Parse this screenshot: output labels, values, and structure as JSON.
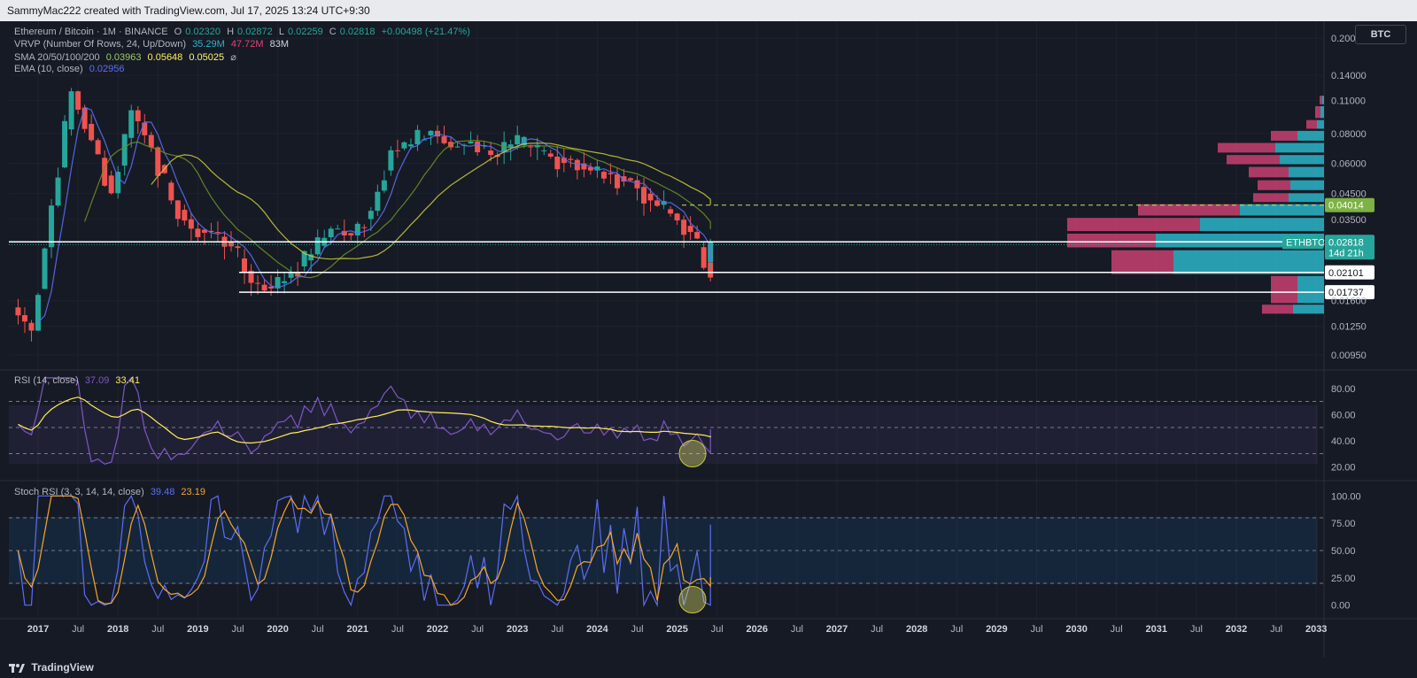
{
  "header": {
    "text": "SammyMac222 created with TradingView.com, Jul 17, 2025 13:24 UTC+9:30"
  },
  "footer": {
    "brand": "TradingView"
  },
  "currency_button": "BTC",
  "legend": {
    "symbol": "Ethereum / Bitcoin · 1M · BINANCE",
    "o_label": "O",
    "o": "0.02320",
    "h_label": "H",
    "h": "0.02872",
    "l_label": "L",
    "l": "0.02259",
    "c_label": "C",
    "c": "0.02818",
    "change": "+0.00498 (+21.47%)",
    "vrvp_label": "VRVP (Number Of Rows, 24, Up/Down)",
    "vrvp_up": "35.29M",
    "vrvp_down": "47.72M",
    "vrvp_total": "83M",
    "sma_label": "SMA 20/50/100/200",
    "sma_20": "0.03963",
    "sma_50": "0.05648",
    "sma_100": "0.05025",
    "ema_label": "EMA (10, close)",
    "ema": "0.02956",
    "rsi_label": "RSI (14, close)",
    "rsi": "37.09",
    "rsi_ma": "33.41",
    "stoch_label": "Stoch RSI (3, 3, 14, 14, close)",
    "stoch_k": "39.48",
    "stoch_d": "23.19"
  },
  "colors": {
    "up": "#26a69a",
    "down": "#ef5350",
    "sma20": "#ffee58",
    "sma50": "#f9f871",
    "ema": "#5b6ef5",
    "rsi": "#7e57c2",
    "stoch_k": "#5b6ef5",
    "stoch_d": "#f7a629",
    "vol_up": "#2bb5c8",
    "vol_down": "#e0457b"
  },
  "price_axis": {
    "ticks": [
      "0.20000",
      "0.14000",
      "0.11000",
      "0.08000",
      "0.06000",
      "0.04500",
      "0.03500",
      "0.02818",
      "0.02101",
      "0.01737",
      "0.01600",
      "0.01250",
      "0.00950"
    ]
  },
  "price_labels": {
    "level_dashed": "0.04014",
    "current": "0.02818",
    "countdown": "14d 21h",
    "ticker": "ETHBTC",
    "support1": "0.02101",
    "support2": "0.01737"
  },
  "rsi_axis": {
    "ticks": [
      "80.00",
      "60.00",
      "40.00",
      "20.00"
    ]
  },
  "stoch_axis": {
    "ticks": [
      "100.00",
      "75.00",
      "50.00",
      "25.00",
      "0.00"
    ]
  },
  "time_axis": {
    "ticks": [
      "2017",
      "Jul",
      "2018",
      "Jul",
      "2019",
      "Jul",
      "2020",
      "Jul",
      "2021",
      "Jul",
      "2022",
      "Jul",
      "2023",
      "Jul",
      "2024",
      "Jul",
      "2025",
      "Jul",
      "2026",
      "Jul",
      "2027",
      "Jul",
      "2028",
      "Jul",
      "2029",
      "Jul",
      "2030",
      "Jul",
      "2031",
      "Jul",
      "2032",
      "Jul",
      "2033"
    ]
  },
  "chart_data": {
    "type": "candlestick",
    "symbol": "ETHBTC",
    "interval": "1M",
    "y_scale": "log",
    "ylim": [
      0.0085,
      0.22
    ],
    "candles_quarterly_approx": [
      {
        "t": "2016-10",
        "o": 0.015,
        "c": 0.012
      },
      {
        "t": "2017-01",
        "o": 0.012,
        "c": 0.04
      },
      {
        "t": "2017-04",
        "o": 0.04,
        "c": 0.12
      },
      {
        "t": "2017-07",
        "o": 0.12,
        "c": 0.075
      },
      {
        "t": "2017-10",
        "o": 0.075,
        "c": 0.045
      },
      {
        "t": "2018-01",
        "o": 0.045,
        "c": 0.1
      },
      {
        "t": "2018-04",
        "o": 0.1,
        "c": 0.07
      },
      {
        "t": "2018-07",
        "o": 0.07,
        "c": 0.042
      },
      {
        "t": "2018-10",
        "o": 0.042,
        "c": 0.032
      },
      {
        "t": "2019-01",
        "o": 0.032,
        "c": 0.031
      },
      {
        "t": "2019-04",
        "o": 0.031,
        "c": 0.027
      },
      {
        "t": "2019-07",
        "o": 0.027,
        "c": 0.019
      },
      {
        "t": "2019-10",
        "o": 0.019,
        "c": 0.018
      },
      {
        "t": "2020-01",
        "o": 0.018,
        "c": 0.021
      },
      {
        "t": "2020-04",
        "o": 0.021,
        "c": 0.025
      },
      {
        "t": "2020-07",
        "o": 0.025,
        "c": 0.032
      },
      {
        "t": "2020-10",
        "o": 0.032,
        "c": 0.03
      },
      {
        "t": "2021-01",
        "o": 0.03,
        "c": 0.038
      },
      {
        "t": "2021-04",
        "o": 0.038,
        "c": 0.068
      },
      {
        "t": "2021-07",
        "o": 0.068,
        "c": 0.072
      },
      {
        "t": "2021-10",
        "o": 0.072,
        "c": 0.082
      },
      {
        "t": "2022-01",
        "o": 0.082,
        "c": 0.07
      },
      {
        "t": "2022-04",
        "o": 0.07,
        "c": 0.074
      },
      {
        "t": "2022-07",
        "o": 0.074,
        "c": 0.065
      },
      {
        "t": "2022-10",
        "o": 0.065,
        "c": 0.072
      },
      {
        "t": "2023-01",
        "o": 0.072,
        "c": 0.07
      },
      {
        "t": "2023-04",
        "o": 0.07,
        "c": 0.064
      },
      {
        "t": "2023-07",
        "o": 0.064,
        "c": 0.062
      },
      {
        "t": "2023-10",
        "o": 0.062,
        "c": 0.056
      },
      {
        "t": "2024-01",
        "o": 0.056,
        "c": 0.054
      },
      {
        "t": "2024-04",
        "o": 0.054,
        "c": 0.051
      },
      {
        "t": "2024-07",
        "o": 0.051,
        "c": 0.042
      },
      {
        "t": "2024-10",
        "o": 0.042,
        "c": 0.037
      },
      {
        "t": "2025-01",
        "o": 0.037,
        "c": 0.031
      },
      {
        "t": "2025-04",
        "o": 0.031,
        "c": 0.02
      },
      {
        "t": "2025-06",
        "o": 0.0232,
        "c": 0.0282
      }
    ],
    "horizontal_levels": [
      0.02818,
      0.02101,
      0.01737
    ],
    "dashed_level": 0.04014,
    "rsi_ylim": [
      10,
      90
    ],
    "stoch_ylim": [
      -10,
      110
    ]
  }
}
